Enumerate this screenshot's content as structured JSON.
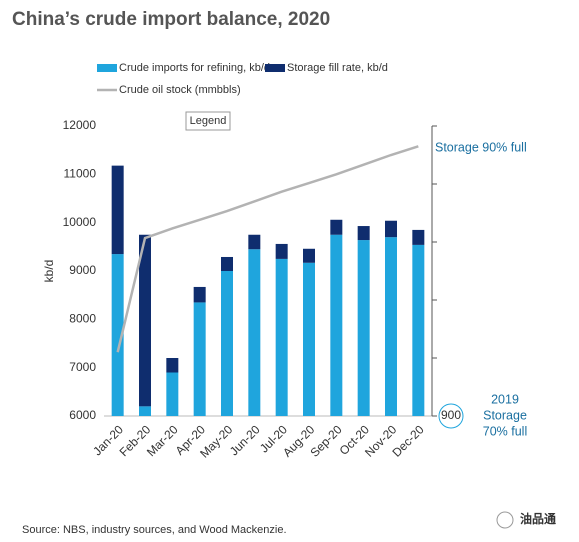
{
  "chart_data": {
    "type": "bar",
    "title": "China’s crude import balance, 2020",
    "y_label": "kb/d",
    "legend_title": "Legend",
    "source": "Source: NBS, industry sources, and Wood Mackenzie.",
    "watermark": "油品通",
    "categories": [
      "Jan-20",
      "Feb-20",
      "Mar-20",
      "Apr-20",
      "May-20",
      "Jun-20",
      "Jul-20",
      "Aug-20",
      "Sep-20",
      "Oct-20",
      "Nov-20",
      "Dec-20"
    ],
    "series": [
      {
        "name": "Crude imports for refining, kb/d",
        "color": "#1fa5dd",
        "stacked": true,
        "values": [
          9350,
          6200,
          6900,
          8350,
          9000,
          9450,
          9250,
          9170,
          9750,
          9640,
          9700,
          9540
        ]
      },
      {
        "name": "Storage fill rate, kb/d",
        "color": "#0f2d6e",
        "stacked": true,
        "values": [
          1830,
          3550,
          300,
          320,
          290,
          300,
          310,
          290,
          310,
          290,
          340,
          310
        ]
      },
      {
        "name": "Crude oil stock (mmbbls)",
        "color": "#b3b3b3",
        "type": "line",
        "axis": "y2",
        "values": [
          966,
          1084,
          1094,
          1103,
          1112,
          1122,
          1132,
          1141,
          1150,
          1160,
          1170,
          1179
        ]
      }
    ],
    "ylim": [
      6000,
      12000
    ],
    "yticks": [
      6000,
      7000,
      8000,
      9000,
      10000,
      11000,
      12000
    ],
    "y2lim": [
      900,
      1200
    ],
    "y2ticks": [
      900
    ],
    "y2minor_ticks": [
      960,
      1020,
      1080,
      1140,
      1200
    ],
    "annotations": [
      "Storage 90% full",
      "2019",
      "Storage",
      "70% full"
    ]
  }
}
